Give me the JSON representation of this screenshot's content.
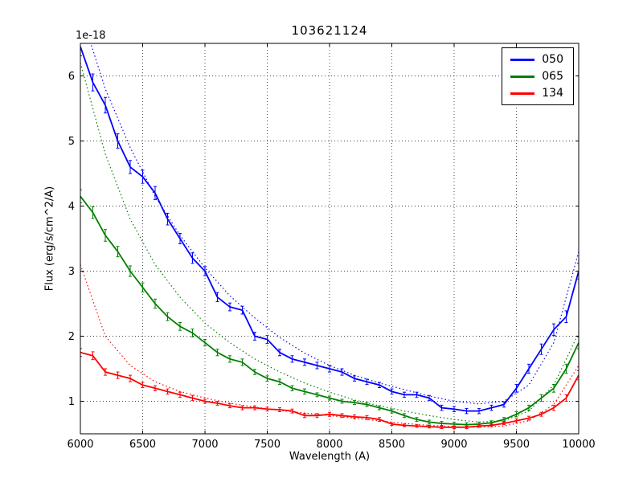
{
  "chart_data": {
    "type": "line",
    "title": "103621124",
    "xlabel": "Wavelength (A)",
    "ylabel": "Flux (erg/s/cm^2/A)",
    "y_offset_text": "1e-18",
    "xlim": [
      6000,
      10000
    ],
    "ylim": [
      0.5,
      6.5
    ],
    "xticks": [
      6000,
      6500,
      7000,
      7500,
      8000,
      8500,
      9000,
      9500,
      10000
    ],
    "yticks": [
      1,
      2,
      3,
      4,
      5,
      6
    ],
    "grid": true,
    "legend_position": "upper right",
    "x": [
      6000,
      6100,
      6200,
      6300,
      6400,
      6500,
      6600,
      6700,
      6800,
      6900,
      7000,
      7100,
      7200,
      7300,
      7400,
      7500,
      7600,
      7700,
      7800,
      7900,
      8000,
      8100,
      8200,
      8300,
      8400,
      8500,
      8600,
      8700,
      8800,
      8900,
      9000,
      9100,
      9200,
      9300,
      9400,
      9500,
      9600,
      9700,
      9800,
      9900,
      10000
    ],
    "series": [
      {
        "name": "050",
        "color": "#0000ff",
        "style": "solid+errorbars",
        "values": [
          6.45,
          5.9,
          5.55,
          5.0,
          4.6,
          4.45,
          4.2,
          3.8,
          3.5,
          3.2,
          3.0,
          2.6,
          2.45,
          2.4,
          2.0,
          1.95,
          1.75,
          1.65,
          1.6,
          1.55,
          1.5,
          1.45,
          1.35,
          1.3,
          1.25,
          1.15,
          1.1,
          1.1,
          1.05,
          0.9,
          0.88,
          0.85,
          0.85,
          0.9,
          0.95,
          1.2,
          1.5,
          1.8,
          2.1,
          2.3,
          3.0
        ],
        "yerr": [
          0.14,
          0.13,
          0.12,
          0.11,
          0.1,
          0.1,
          0.1,
          0.09,
          0.08,
          0.08,
          0.07,
          0.07,
          0.06,
          0.06,
          0.06,
          0.06,
          0.05,
          0.05,
          0.05,
          0.05,
          0.05,
          0.05,
          0.04,
          0.04,
          0.04,
          0.04,
          0.04,
          0.04,
          0.04,
          0.04,
          0.04,
          0.04,
          0.04,
          0.04,
          0.04,
          0.06,
          0.07,
          0.08,
          0.09,
          0.09,
          0.12
        ]
      },
      {
        "name": "065",
        "color": "#008000",
        "style": "solid+errorbars",
        "values": [
          4.15,
          3.9,
          3.55,
          3.3,
          3.0,
          2.75,
          2.5,
          2.3,
          2.15,
          2.05,
          1.9,
          1.75,
          1.65,
          1.6,
          1.45,
          1.35,
          1.3,
          1.2,
          1.15,
          1.1,
          1.05,
          1.0,
          0.98,
          0.95,
          0.9,
          0.85,
          0.78,
          0.72,
          0.68,
          0.66,
          0.65,
          0.64,
          0.65,
          0.67,
          0.72,
          0.8,
          0.9,
          1.05,
          1.2,
          1.5,
          1.9
        ],
        "yerr": [
          0.1,
          0.09,
          0.09,
          0.08,
          0.08,
          0.07,
          0.07,
          0.06,
          0.06,
          0.06,
          0.05,
          0.05,
          0.05,
          0.05,
          0.04,
          0.04,
          0.04,
          0.04,
          0.04,
          0.03,
          0.03,
          0.03,
          0.03,
          0.03,
          0.03,
          0.03,
          0.03,
          0.03,
          0.03,
          0.03,
          0.03,
          0.03,
          0.03,
          0.03,
          0.03,
          0.04,
          0.04,
          0.05,
          0.06,
          0.07,
          0.09
        ]
      },
      {
        "name": "134",
        "color": "#ff0000",
        "style": "solid+errorbars",
        "values": [
          1.75,
          1.7,
          1.45,
          1.4,
          1.35,
          1.25,
          1.2,
          1.15,
          1.1,
          1.05,
          1.0,
          0.97,
          0.93,
          0.9,
          0.9,
          0.88,
          0.87,
          0.85,
          0.78,
          0.78,
          0.8,
          0.78,
          0.76,
          0.75,
          0.72,
          0.65,
          0.63,
          0.62,
          0.61,
          0.6,
          0.6,
          0.6,
          0.62,
          0.63,
          0.66,
          0.7,
          0.74,
          0.8,
          0.9,
          1.05,
          1.4
        ],
        "yerr": [
          0.06,
          0.06,
          0.05,
          0.05,
          0.05,
          0.04,
          0.04,
          0.04,
          0.04,
          0.04,
          0.03,
          0.03,
          0.03,
          0.03,
          0.03,
          0.03,
          0.03,
          0.03,
          0.03,
          0.03,
          0.03,
          0.03,
          0.03,
          0.03,
          0.03,
          0.02,
          0.02,
          0.02,
          0.02,
          0.02,
          0.02,
          0.02,
          0.02,
          0.02,
          0.02,
          0.03,
          0.03,
          0.03,
          0.04,
          0.05,
          0.07
        ]
      }
    ],
    "model_x": [
      6000,
      6200,
      6400,
      6600,
      6800,
      7000,
      7200,
      7400,
      7600,
      7800,
      8000,
      8200,
      8400,
      8600,
      8800,
      9000,
      9200,
      9400,
      9600,
      9800,
      10000
    ],
    "model_series": [
      {
        "name": "050-model",
        "color": "#0000ff",
        "style": "dotted",
        "values": [
          7.0,
          5.8,
          4.9,
          4.15,
          3.55,
          3.05,
          2.62,
          2.28,
          1.98,
          1.74,
          1.55,
          1.4,
          1.28,
          1.18,
          1.08,
          1.0,
          0.96,
          1.0,
          1.25,
          1.9,
          3.3
        ]
      },
      {
        "name": "065-model",
        "color": "#008000",
        "style": "dotted",
        "values": [
          6.2,
          4.8,
          3.8,
          3.1,
          2.6,
          2.2,
          1.9,
          1.65,
          1.45,
          1.28,
          1.14,
          1.02,
          0.93,
          0.85,
          0.78,
          0.72,
          0.68,
          0.7,
          0.85,
          1.25,
          2.05
        ]
      },
      {
        "name": "134-model",
        "color": "#ff0000",
        "style": "dotted",
        "values": [
          3.1,
          2.0,
          1.55,
          1.3,
          1.15,
          1.05,
          0.97,
          0.91,
          0.86,
          0.82,
          0.78,
          0.74,
          0.7,
          0.66,
          0.63,
          0.61,
          0.6,
          0.62,
          0.7,
          0.95,
          1.55
        ]
      }
    ]
  }
}
